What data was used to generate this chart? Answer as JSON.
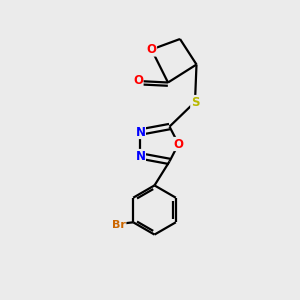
{
  "background_color": "#ebebeb",
  "bond_color": "#000000",
  "atom_colors": {
    "O": "#ff0000",
    "N": "#0000ff",
    "S": "#b8b800",
    "Br": "#cc6600",
    "C": "#000000"
  },
  "figsize": [
    3.0,
    3.0
  ],
  "dpi": 100,
  "lw": 1.6,
  "fontsize": 8.5
}
